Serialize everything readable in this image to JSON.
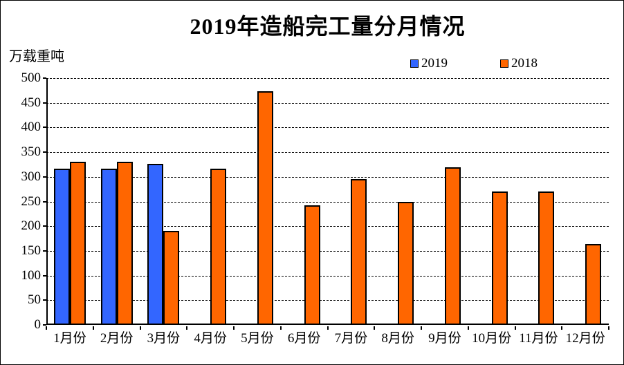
{
  "chart_data": {
    "type": "bar",
    "title": "2019年造船完工量分月情况",
    "ylabel": "万载重吨",
    "xlabel": "",
    "categories": [
      "1月份",
      "2月份",
      "3月份",
      "4月份",
      "5月份",
      "6月份",
      "7月份",
      "8月份",
      "9月份",
      "10月份",
      "11月份",
      "12月份"
    ],
    "series": [
      {
        "name": "2019",
        "color": "#3366FF",
        "values": [
          317,
          317,
          326,
          null,
          null,
          null,
          null,
          null,
          null,
          null,
          null,
          null
        ]
      },
      {
        "name": "2018",
        "color": "#FF6600",
        "values": [
          331,
          331,
          190,
          317,
          473,
          243,
          296,
          249,
          320,
          271,
          270,
          164
        ]
      }
    ],
    "ylim": [
      0,
      500
    ],
    "yticks": [
      0,
      50,
      100,
      150,
      200,
      250,
      300,
      350,
      400,
      450,
      500
    ],
    "grid": true,
    "gridline_style": "dashed",
    "legend_position": "top",
    "axis_color": "#000000",
    "background_color": "#ffffff"
  }
}
